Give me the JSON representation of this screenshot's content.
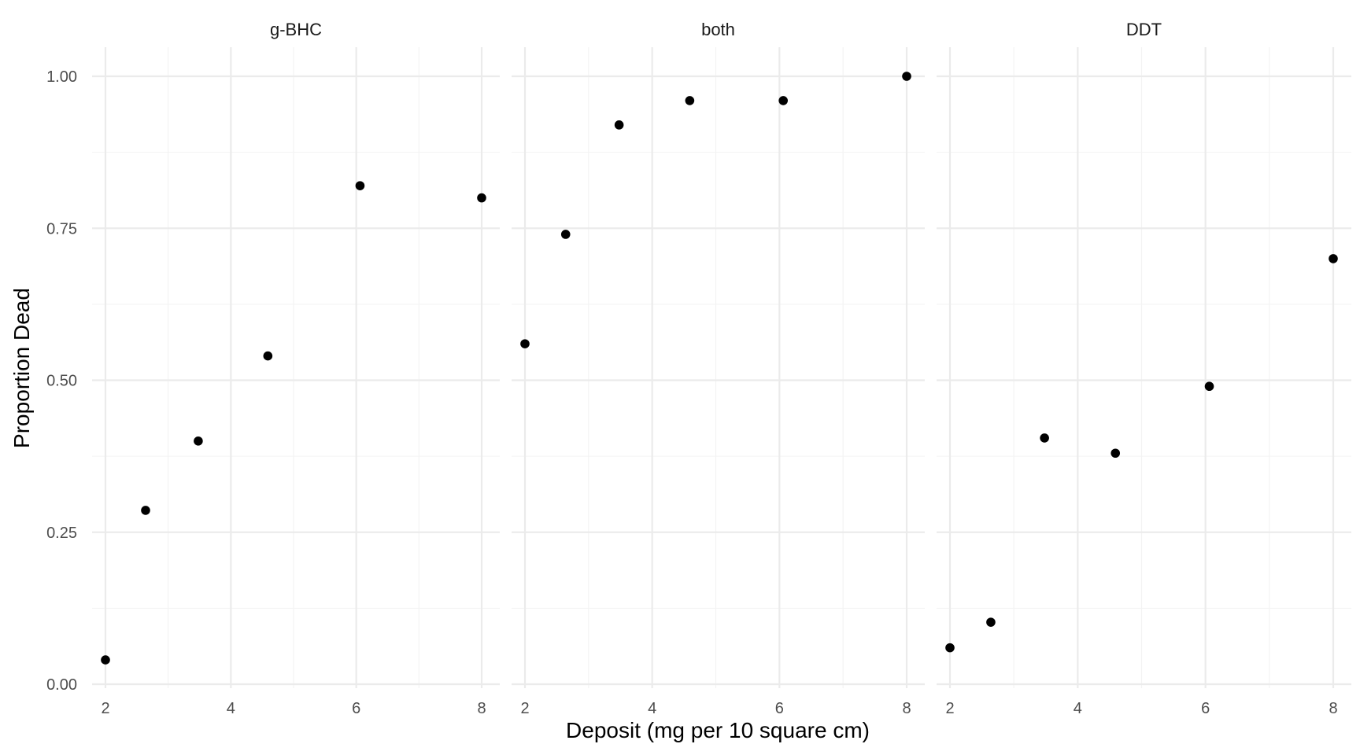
{
  "chart_data": {
    "type": "scatter",
    "xlabel": "Deposit (mg per 10 square cm)",
    "ylabel": "Proportion Dead",
    "xlim": [
      1.85,
      8.3
    ],
    "ylim": [
      0,
      1.05
    ],
    "x_ticks": [
      "2",
      "4",
      "6",
      "8"
    ],
    "y_ticks": [
      "0.00",
      "0.25",
      "0.50",
      "0.75",
      "1.00"
    ],
    "grid": true,
    "panels": [
      {
        "name": "g-BHC",
        "x": [
          2.0,
          2.64,
          3.48,
          4.59,
          6.06,
          8.0
        ],
        "y": [
          0.04,
          0.286,
          0.4,
          0.54,
          0.82,
          0.8
        ]
      },
      {
        "name": "both",
        "x": [
          2.0,
          2.64,
          3.48,
          4.59,
          6.06,
          8.0
        ],
        "y": [
          0.56,
          0.74,
          0.92,
          0.96,
          0.96,
          1.0
        ]
      },
      {
        "name": "DDT",
        "x": [
          2.0,
          2.64,
          3.48,
          4.59,
          6.06,
          8.0
        ],
        "y": [
          0.06,
          0.102,
          0.405,
          0.38,
          0.49,
          0.7
        ]
      }
    ]
  }
}
